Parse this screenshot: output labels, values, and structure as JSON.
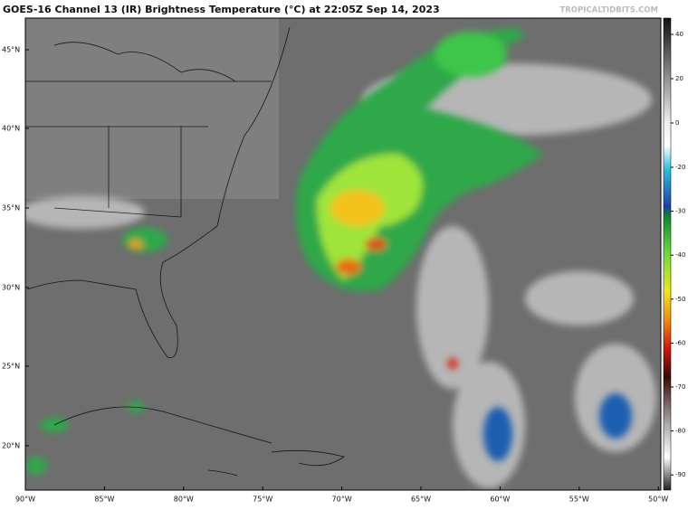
{
  "header": {
    "title": "GOES-16 Channel 13 (IR) Brightness Temperature (°C) at 22:05Z Sep 14, 2023",
    "watermark": "TROPICALTIDBITS.COM"
  },
  "map": {
    "lat_labels": [
      "45°N",
      "40°N",
      "35°N",
      "30°N",
      "25°N",
      "20°N"
    ],
    "lon_labels": [
      "90°W",
      "85°W",
      "80°W",
      "75°W",
      "70°W",
      "65°W",
      "60°W",
      "55°W",
      "50°W"
    ]
  },
  "colorbar": {
    "ticks": [
      40,
      20,
      0,
      -20,
      -30,
      -40,
      -50,
      -60,
      -70,
      -80,
      -90
    ]
  }
}
